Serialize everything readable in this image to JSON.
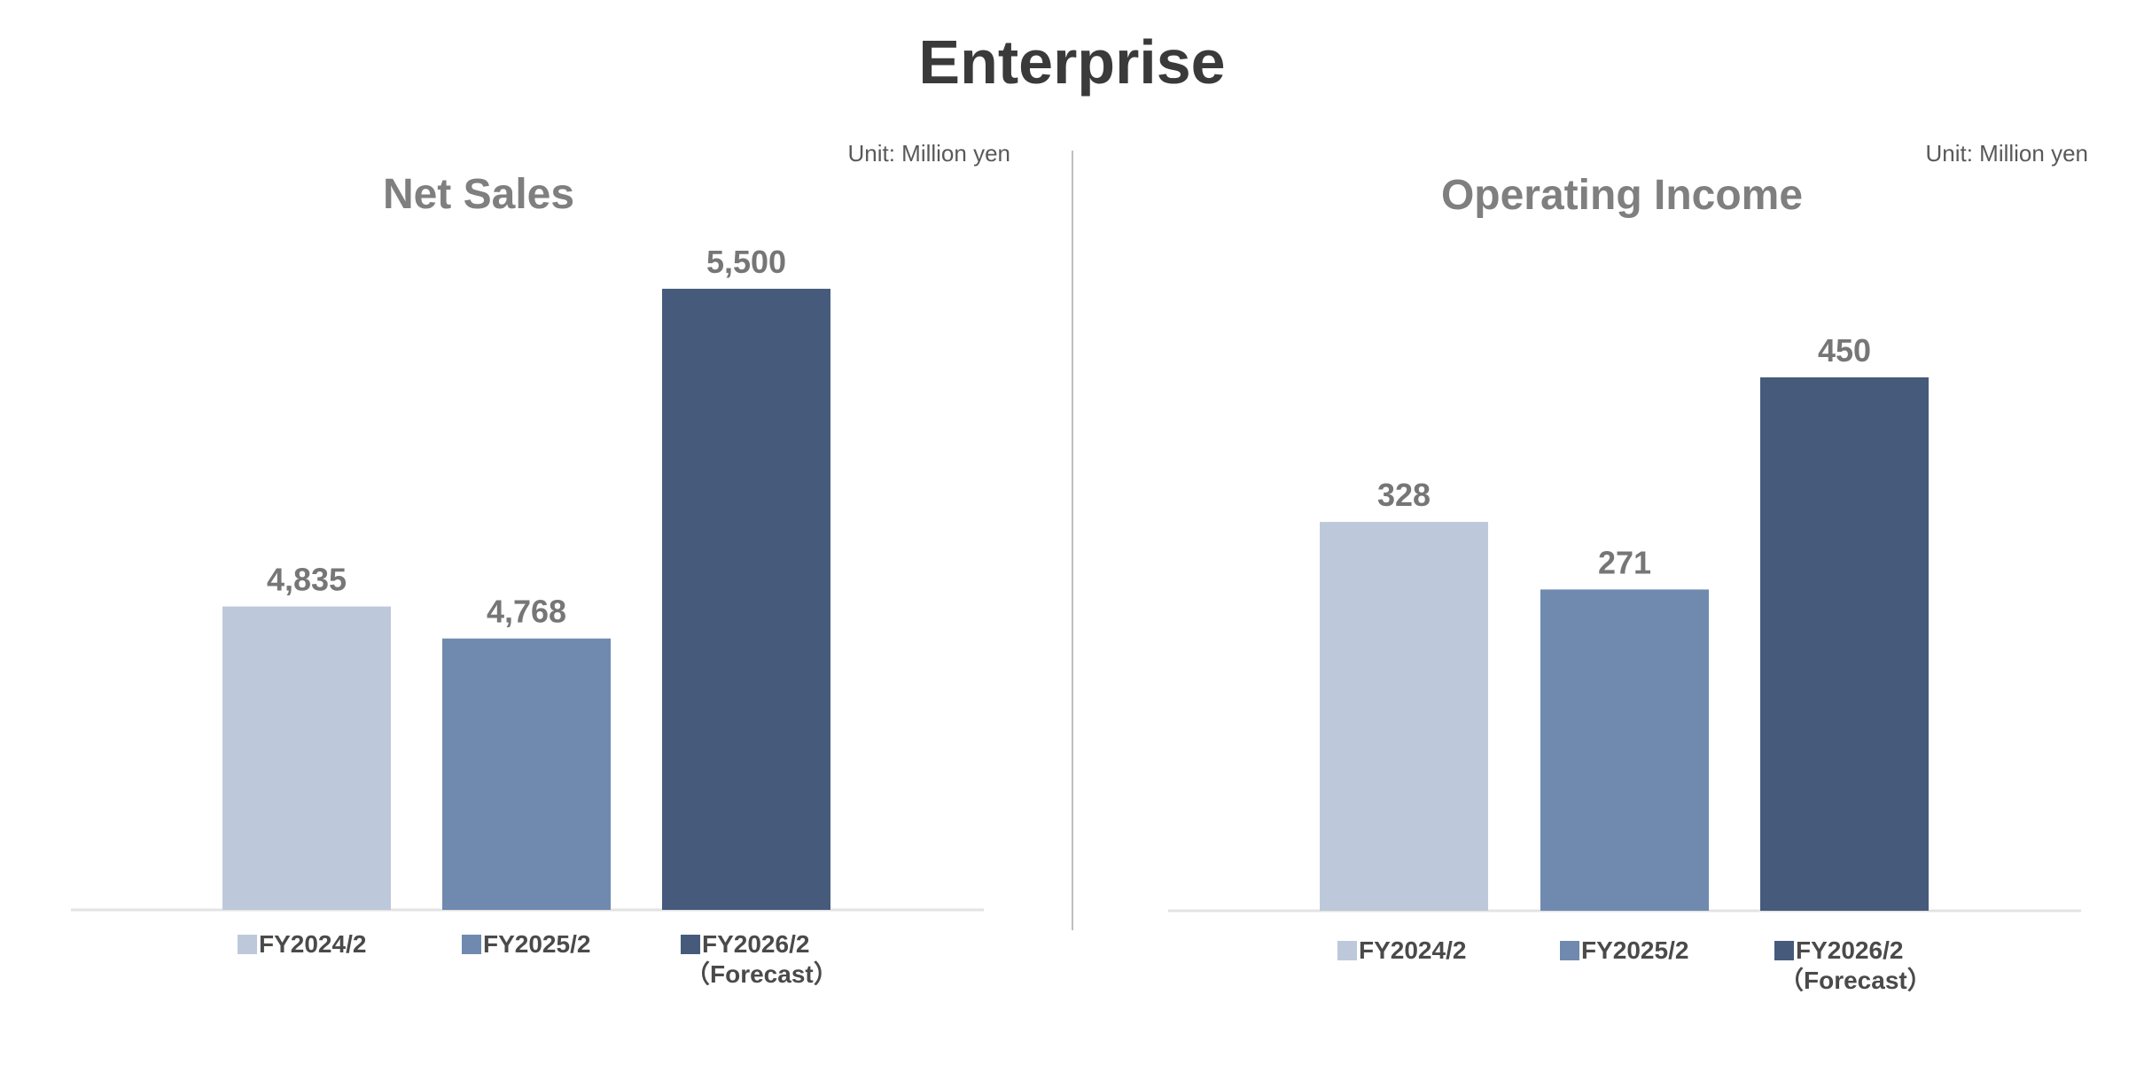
{
  "title": "Enterprise",
  "unit_label": "Unit: Million yen",
  "colors": [
    "#bdc9da",
    "#6f8aae",
    "#465b7b"
  ],
  "chart_data": [
    {
      "type": "bar",
      "title": "Net Sales",
      "categories": [
        "FY2024/2",
        "FY2025/2",
        "FY2026/2"
      ],
      "legend_labels": [
        [
          "FY2024/2"
        ],
        [
          "FY2025/2"
        ],
        [
          "FY2026/2",
          "（Forecast）"
        ]
      ],
      "values": [
        4835,
        4768,
        5500
      ],
      "value_labels": [
        "4,835",
        "4,768",
        "5,500"
      ],
      "ylim": [
        4200,
        5600
      ],
      "xlabel": "",
      "ylabel": "",
      "grid": false,
      "legend": "bottom"
    },
    {
      "type": "bar",
      "title": "Operating Income",
      "categories": [
        "FY2024/2",
        "FY2025/2",
        "FY2026/2"
      ],
      "legend_labels": [
        [
          "FY2024/2"
        ],
        [
          "FY2025/2"
        ],
        [
          "FY2026/2",
          "（Forecast）"
        ]
      ],
      "values": [
        328,
        271,
        450
      ],
      "value_labels": [
        "328",
        "271",
        "450"
      ],
      "ylim": [
        0,
        565
      ],
      "xlabel": "",
      "ylabel": "",
      "grid": false,
      "legend": "bottom"
    }
  ]
}
